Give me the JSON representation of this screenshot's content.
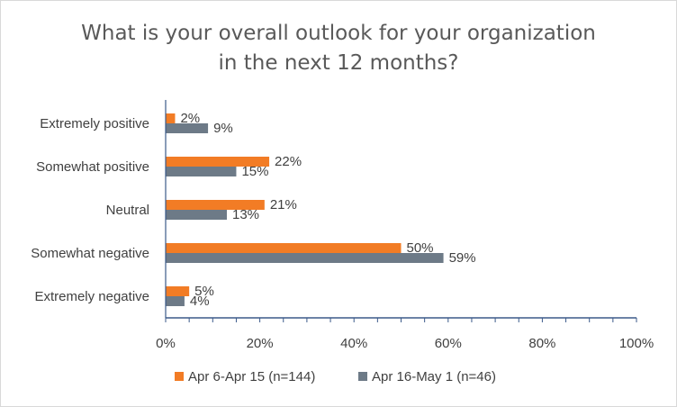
{
  "chart_data": {
    "type": "bar",
    "orientation": "horizontal",
    "title_lines": [
      "What is your overall outlook for your organization",
      "in the next 12 months?"
    ],
    "categories": [
      "Extremely positive",
      "Somewhat positive",
      "Neutral",
      "Somewhat negative",
      "Extremely negative"
    ],
    "series": [
      {
        "name": "Apr 6-Apr 15 (n=144)",
        "values": [
          2,
          22,
          21,
          50,
          5
        ],
        "labels": [
          "2%",
          "22%",
          "21%",
          "50%",
          "5%"
        ],
        "color": "#f27c25"
      },
      {
        "name": "Apr 16-May 1 (n=46)",
        "values": [
          9,
          15,
          13,
          59,
          4
        ],
        "labels": [
          "9%",
          "15%",
          "13%",
          "59%",
          "4%"
        ],
        "color": "#6d7a87"
      }
    ],
    "xlim": [
      0,
      100
    ],
    "xticks": [
      0,
      20,
      40,
      60,
      80,
      100
    ],
    "xtick_labels": [
      "0%",
      "20%",
      "40%",
      "60%",
      "80%",
      "100%"
    ],
    "grid": false,
    "legend_position": "bottom",
    "axis_color": "#3b5a8a"
  }
}
